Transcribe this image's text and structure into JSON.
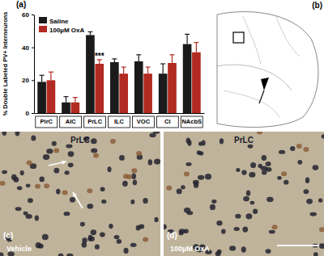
{
  "chart_data": {
    "type": "bar",
    "ylabel": "% Double Labeled PV+ Interneurons",
    "categories": [
      "PirC",
      "AIC",
      "PrLC",
      "ILC",
      "VOC",
      "CI",
      "NAcbS"
    ],
    "series": [
      {
        "name": "Saline",
        "color": "#1a1a1a",
        "values": [
          19,
          6.5,
          47.5,
          31,
          31.5,
          24,
          42
        ],
        "errors": [
          4,
          3.5,
          2,
          2,
          4,
          6,
          6
        ]
      },
      {
        "name": "100µM OxA",
        "color": "#b22a22",
        "values": [
          20,
          6.5,
          30,
          24,
          24,
          30.5,
          37
        ],
        "errors": [
          5,
          3,
          2.5,
          4,
          4,
          5,
          6
        ]
      }
    ],
    "ylim": [
      0,
      60
    ],
    "yticks": [
      0,
      20,
      40,
      60
    ],
    "legend": "upper left",
    "annotations": [
      {
        "text": "***",
        "x": "PrLC",
        "series": "100µM OxA"
      }
    ]
  },
  "figure": {
    "panel_labels": [
      "(a)",
      "(b)",
      "(c)",
      "(d)"
    ],
    "micrographs": [
      {
        "region": "PrLC",
        "condition": "Vehicle"
      },
      {
        "region": "PrLC",
        "condition": "100µM OxA"
      }
    ]
  }
}
